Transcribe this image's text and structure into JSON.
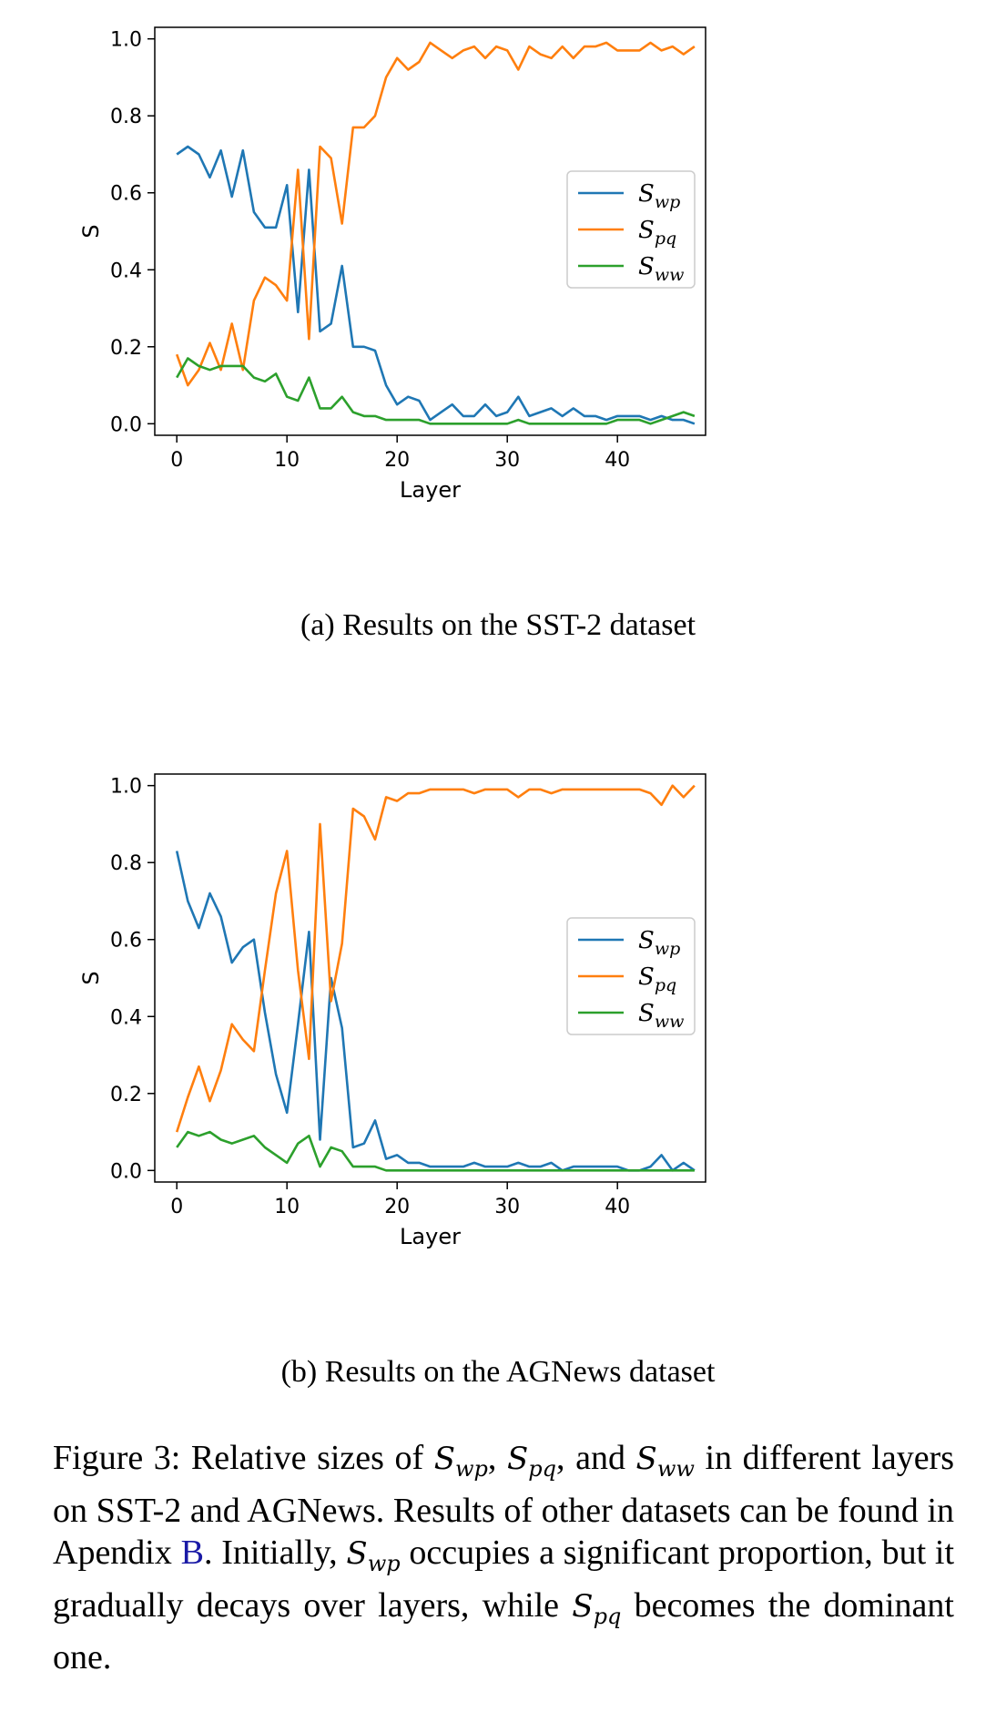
{
  "chart_data": [
    {
      "type": "line",
      "xlabel": "Layer",
      "ylabel": "S",
      "xlim": [
        -2,
        48
      ],
      "ylim": [
        -0.03,
        1.03
      ],
      "xticks": [
        0,
        10,
        20,
        30,
        40
      ],
      "yticks": [
        0.0,
        0.2,
        0.4,
        0.6,
        0.8,
        1.0
      ],
      "legend_position": "center-right",
      "grid": false,
      "x": [
        0,
        1,
        2,
        3,
        4,
        5,
        6,
        7,
        8,
        9,
        10,
        11,
        12,
        13,
        14,
        15,
        16,
        17,
        18,
        19,
        20,
        21,
        22,
        23,
        24,
        25,
        26,
        27,
        28,
        29,
        30,
        31,
        32,
        33,
        34,
        35,
        36,
        37,
        38,
        39,
        40,
        41,
        42,
        43,
        44,
        45,
        46,
        47
      ],
      "series": [
        {
          "name": "wp",
          "color": "#1f77b4",
          "values": [
            0.7,
            0.72,
            0.7,
            0.64,
            0.71,
            0.59,
            0.71,
            0.55,
            0.51,
            0.51,
            0.62,
            0.29,
            0.66,
            0.24,
            0.26,
            0.41,
            0.2,
            0.2,
            0.19,
            0.1,
            0.05,
            0.07,
            0.06,
            0.01,
            0.03,
            0.05,
            0.02,
            0.02,
            0.05,
            0.02,
            0.03,
            0.07,
            0.02,
            0.03,
            0.04,
            0.02,
            0.04,
            0.02,
            0.02,
            0.01,
            0.02,
            0.02,
            0.02,
            0.01,
            0.02,
            0.01,
            0.01,
            0.0
          ]
        },
        {
          "name": "pq",
          "color": "#ff7f0e",
          "values": [
            0.18,
            0.1,
            0.14,
            0.21,
            0.14,
            0.26,
            0.14,
            0.32,
            0.38,
            0.36,
            0.32,
            0.66,
            0.22,
            0.72,
            0.69,
            0.52,
            0.77,
            0.77,
            0.8,
            0.9,
            0.95,
            0.92,
            0.94,
            0.99,
            0.97,
            0.95,
            0.97,
            0.98,
            0.95,
            0.98,
            0.97,
            0.92,
            0.98,
            0.96,
            0.95,
            0.98,
            0.95,
            0.98,
            0.98,
            0.99,
            0.97,
            0.97,
            0.97,
            0.99,
            0.97,
            0.98,
            0.96,
            0.98
          ]
        },
        {
          "name": "ww",
          "color": "#2ca02c",
          "values": [
            0.12,
            0.17,
            0.15,
            0.14,
            0.15,
            0.15,
            0.15,
            0.12,
            0.11,
            0.13,
            0.07,
            0.06,
            0.12,
            0.04,
            0.04,
            0.07,
            0.03,
            0.02,
            0.02,
            0.01,
            0.01,
            0.01,
            0.01,
            0.0,
            0.0,
            0.0,
            0.0,
            0.0,
            0.0,
            0.0,
            0.0,
            0.01,
            0.0,
            0.0,
            0.0,
            0.0,
            0.0,
            0.0,
            0.0,
            0.0,
            0.01,
            0.01,
            0.01,
            0.0,
            0.01,
            0.02,
            0.03,
            0.02
          ]
        }
      ]
    },
    {
      "type": "line",
      "xlabel": "Layer",
      "ylabel": "S",
      "xlim": [
        -2,
        48
      ],
      "ylim": [
        -0.03,
        1.03
      ],
      "xticks": [
        0,
        10,
        20,
        30,
        40
      ],
      "yticks": [
        0.0,
        0.2,
        0.4,
        0.6,
        0.8,
        1.0
      ],
      "legend_position": "center-right",
      "grid": false,
      "x": [
        0,
        1,
        2,
        3,
        4,
        5,
        6,
        7,
        8,
        9,
        10,
        11,
        12,
        13,
        14,
        15,
        16,
        17,
        18,
        19,
        20,
        21,
        22,
        23,
        24,
        25,
        26,
        27,
        28,
        29,
        30,
        31,
        32,
        33,
        34,
        35,
        36,
        37,
        38,
        39,
        40,
        41,
        42,
        43,
        44,
        45,
        46,
        47
      ],
      "series": [
        {
          "name": "wp",
          "color": "#1f77b4",
          "values": [
            0.83,
            0.7,
            0.63,
            0.72,
            0.66,
            0.54,
            0.58,
            0.6,
            0.41,
            0.25,
            0.15,
            0.38,
            0.62,
            0.08,
            0.5,
            0.37,
            0.06,
            0.07,
            0.13,
            0.03,
            0.04,
            0.02,
            0.02,
            0.01,
            0.01,
            0.01,
            0.01,
            0.02,
            0.01,
            0.01,
            0.01,
            0.02,
            0.01,
            0.01,
            0.02,
            0.0,
            0.01,
            0.01,
            0.01,
            0.01,
            0.01,
            0.0,
            0.0,
            0.01,
            0.04,
            0.0,
            0.02,
            0.0
          ]
        },
        {
          "name": "pq",
          "color": "#ff7f0e",
          "values": [
            0.1,
            0.19,
            0.27,
            0.18,
            0.26,
            0.38,
            0.34,
            0.31,
            0.52,
            0.72,
            0.83,
            0.52,
            0.29,
            0.9,
            0.44,
            0.59,
            0.94,
            0.92,
            0.86,
            0.97,
            0.96,
            0.98,
            0.98,
            0.99,
            0.99,
            0.99,
            0.99,
            0.98,
            0.99,
            0.99,
            0.99,
            0.97,
            0.99,
            0.99,
            0.98,
            0.99,
            0.99,
            0.99,
            0.99,
            0.99,
            0.99,
            0.99,
            0.99,
            0.98,
            0.95,
            1.0,
            0.97,
            1.0
          ]
        },
        {
          "name": "ww",
          "color": "#2ca02c",
          "values": [
            0.06,
            0.1,
            0.09,
            0.1,
            0.08,
            0.07,
            0.08,
            0.09,
            0.06,
            0.04,
            0.02,
            0.07,
            0.09,
            0.01,
            0.06,
            0.05,
            0.01,
            0.01,
            0.01,
            0.0,
            0.0,
            0.0,
            0.0,
            0.0,
            0.0,
            0.0,
            0.0,
            0.0,
            0.0,
            0.0,
            0.0,
            0.0,
            0.0,
            0.0,
            0.0,
            0.0,
            0.0,
            0.0,
            0.0,
            0.0,
            0.0,
            0.0,
            0.0,
            0.0,
            0.0,
            0.0,
            0.0,
            0.0
          ]
        }
      ]
    }
  ],
  "captions": {
    "a": "(a) Results on the SST-2 dataset",
    "b": "(b) Results on the AGNews dataset"
  },
  "legend": {
    "symbol": "S"
  },
  "figure_caption": {
    "intro": "Figure 3: Relative sizes of ",
    "sep1": ", ",
    "sep2": ", and ",
    "mid1": " in different layers on SST-2 and AGNews. Results of other datasets can be found in Apendix ",
    "link": "B",
    "mid2": ". Initially, ",
    "mid3": " occupies a significant proportion, but it gradually decays over layers, while ",
    "end": " becomes the dominant one.",
    "symbol": "S",
    "sub_wp": "wp",
    "sub_pq": "pq",
    "sub_ww": "ww"
  }
}
